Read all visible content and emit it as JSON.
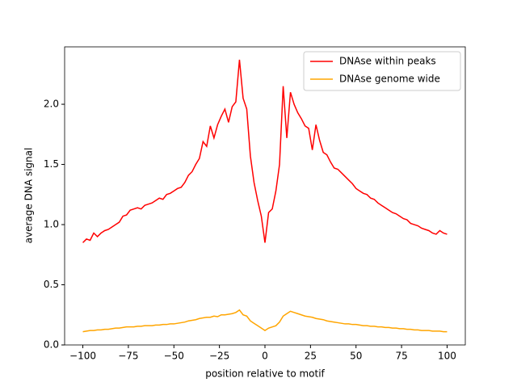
{
  "chart_data": {
    "type": "line",
    "xlabel": "position relative to motif",
    "ylabel": "average DNA signal",
    "x": [
      -100,
      -98,
      -96,
      -94,
      -92,
      -90,
      -88,
      -86,
      -84,
      -82,
      -80,
      -78,
      -76,
      -74,
      -72,
      -70,
      -68,
      -66,
      -64,
      -62,
      -60,
      -58,
      -56,
      -54,
      -52,
      -50,
      -48,
      -46,
      -44,
      -42,
      -40,
      -38,
      -36,
      -34,
      -32,
      -30,
      -28,
      -26,
      -24,
      -22,
      -20,
      -18,
      -16,
      -14,
      -12,
      -10,
      -8,
      -6,
      -4,
      -2,
      0,
      2,
      4,
      6,
      8,
      10,
      12,
      14,
      16,
      18,
      20,
      22,
      24,
      26,
      28,
      30,
      32,
      34,
      36,
      38,
      40,
      42,
      44,
      46,
      48,
      50,
      52,
      54,
      56,
      58,
      60,
      62,
      64,
      66,
      68,
      70,
      72,
      74,
      76,
      78,
      80,
      82,
      84,
      86,
      88,
      90,
      92,
      94,
      96,
      98,
      100
    ],
    "series": [
      {
        "name": "DNAse within peaks",
        "color": "#ff0000",
        "values": [
          0.85,
          0.88,
          0.87,
          0.93,
          0.9,
          0.93,
          0.95,
          0.96,
          0.98,
          1.0,
          1.02,
          1.07,
          1.08,
          1.12,
          1.13,
          1.14,
          1.13,
          1.16,
          1.17,
          1.18,
          1.2,
          1.22,
          1.21,
          1.25,
          1.26,
          1.28,
          1.3,
          1.31,
          1.35,
          1.41,
          1.44,
          1.5,
          1.55,
          1.69,
          1.65,
          1.82,
          1.72,
          1.83,
          1.9,
          1.96,
          1.85,
          1.98,
          2.02,
          2.37,
          2.05,
          1.96,
          1.57,
          1.35,
          1.2,
          1.07,
          0.85,
          1.1,
          1.13,
          1.28,
          1.5,
          2.15,
          1.72,
          2.1,
          2.0,
          1.93,
          1.88,
          1.82,
          1.8,
          1.62,
          1.83,
          1.7,
          1.6,
          1.58,
          1.52,
          1.47,
          1.46,
          1.43,
          1.4,
          1.37,
          1.34,
          1.3,
          1.28,
          1.26,
          1.25,
          1.22,
          1.21,
          1.18,
          1.16,
          1.14,
          1.12,
          1.1,
          1.09,
          1.07,
          1.05,
          1.04,
          1.01,
          1.0,
          0.99,
          0.97,
          0.96,
          0.95,
          0.93,
          0.92,
          0.95,
          0.93,
          0.92
        ]
      },
      {
        "name": "DNAse genome wide",
        "color": "#ffa500",
        "values": [
          0.11,
          0.115,
          0.12,
          0.12,
          0.125,
          0.125,
          0.13,
          0.13,
          0.135,
          0.14,
          0.14,
          0.145,
          0.15,
          0.15,
          0.15,
          0.155,
          0.155,
          0.16,
          0.16,
          0.16,
          0.165,
          0.165,
          0.17,
          0.17,
          0.175,
          0.175,
          0.18,
          0.185,
          0.19,
          0.2,
          0.205,
          0.21,
          0.22,
          0.225,
          0.23,
          0.23,
          0.24,
          0.235,
          0.25,
          0.25,
          0.255,
          0.26,
          0.27,
          0.29,
          0.25,
          0.24,
          0.2,
          0.18,
          0.16,
          0.14,
          0.12,
          0.14,
          0.15,
          0.16,
          0.19,
          0.24,
          0.26,
          0.28,
          0.27,
          0.26,
          0.25,
          0.24,
          0.235,
          0.23,
          0.22,
          0.215,
          0.21,
          0.2,
          0.195,
          0.19,
          0.185,
          0.18,
          0.175,
          0.175,
          0.17,
          0.17,
          0.165,
          0.16,
          0.16,
          0.155,
          0.155,
          0.15,
          0.15,
          0.145,
          0.145,
          0.14,
          0.14,
          0.135,
          0.135,
          0.13,
          0.13,
          0.125,
          0.125,
          0.12,
          0.12,
          0.12,
          0.115,
          0.115,
          0.115,
          0.11,
          0.11
        ]
      }
    ],
    "xlim": [
      -110,
      110
    ],
    "ylim": [
      0,
      2.477
    ],
    "xticks": [
      {
        "value": -100,
        "label": "−100"
      },
      {
        "value": -75,
        "label": "−75"
      },
      {
        "value": -50,
        "label": "−50"
      },
      {
        "value": -25,
        "label": "−25"
      },
      0,
      25,
      50,
      75,
      100
    ],
    "yticks": [
      {
        "value": 0,
        "label": "0.0"
      },
      0.5,
      {
        "value": 1,
        "label": "1.0"
      },
      1.5,
      {
        "value": 2,
        "label": "2.0"
      }
    ],
    "grid": false,
    "legend": "upper right"
  }
}
